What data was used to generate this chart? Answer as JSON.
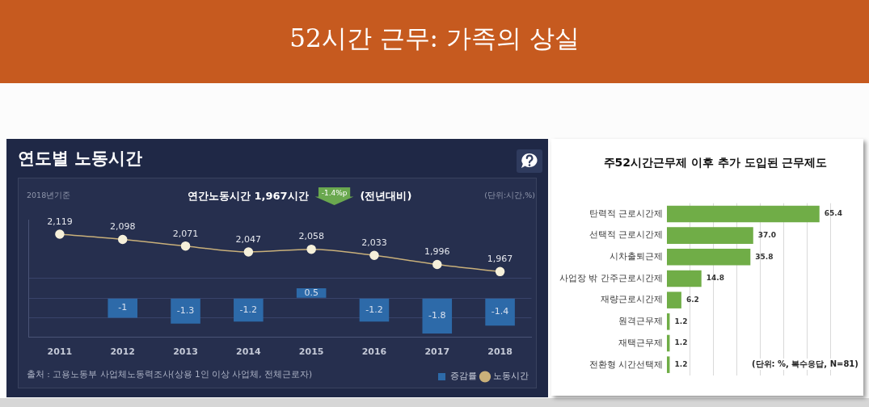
{
  "chart_data": [
    {
      "type": "other",
      "title": "52시간 근무: 가족의 상실"
    },
    {
      "type": "bar",
      "title": "연도별 노동시간",
      "subtitle": "연간노동시간 1,967시간",
      "annotations": [
        "2018년기준",
        "-1.4%p",
        "(전년대비)",
        "(단위:시간,%)",
        "출처 : 고용노동부 사업체노동력조사(상용 1인 이상 사업체, 전체근로자)"
      ],
      "categories": [
        "2011",
        "2012",
        "2013",
        "2014",
        "2015",
        "2016",
        "2017",
        "2018"
      ],
      "series": [
        {
          "name": "증감률",
          "type": "bar",
          "color": "#2d6aa9",
          "values": [
            null,
            -1,
            -1.3,
            -1.2,
            0.5,
            -1.2,
            -1.8,
            -1.4
          ]
        },
        {
          "name": "노동시간",
          "type": "line",
          "axis": "y2",
          "color": "#c9b07a",
          "marker": "circle",
          "values": [
            2119,
            2098,
            2071,
            2047,
            2058,
            2033,
            1996,
            1967
          ],
          "value_labels": [
            "2,119",
            "2,098",
            "2,071",
            "2,047",
            "2,058",
            "2,033",
            "1,996",
            "1,967"
          ]
        }
      ],
      "ylim": [
        -2,
        4
      ],
      "yticks": [
        {
          "value": -2,
          "label": null
        },
        {
          "value": -1,
          "label": null
        },
        {
          "value": 0,
          "label": null
        },
        {
          "value": 1,
          "label": null
        }
      ],
      "data_labels": true,
      "grid": "y",
      "legend": "bottom right",
      "tick_labels": "x"
    },
    {
      "type": "bar",
      "orientation": "horizontal",
      "title": "주52시간근무제 이후 추가 도입된 근무제도",
      "annotations": [
        "(단위: %, 복수응답, N=81)"
      ],
      "categories": [
        "탄력적 근로시간제",
        "선택적 근로시간제",
        "시차출퇴근제",
        "사업장 밖 간주근로시간제",
        "재량근로시간제",
        "원격근무제",
        "재택근무제",
        "전환형 시간선택제"
      ],
      "values": [
        65.4,
        37,
        35.8,
        14.8,
        6.2,
        1.2,
        1.2,
        1.2
      ],
      "value_labels": [
        "65.4",
        "37.0",
        "35.8",
        "14.8",
        "6.2",
        "1.2",
        "1.2",
        "1.2"
      ],
      "color": "#70ad47",
      "xlim": [
        0,
        70
      ],
      "xticks": [
        {
          "value": 10,
          "label": null
        },
        {
          "value": 20,
          "label": null
        },
        {
          "value": 30,
          "label": null
        },
        {
          "value": 40,
          "label": null
        },
        {
          "value": 50,
          "label": null
        },
        {
          "value": 60,
          "label": null
        },
        {
          "value": 70,
          "label": null
        }
      ],
      "grid": "x",
      "tick_labels": "y"
    }
  ]
}
